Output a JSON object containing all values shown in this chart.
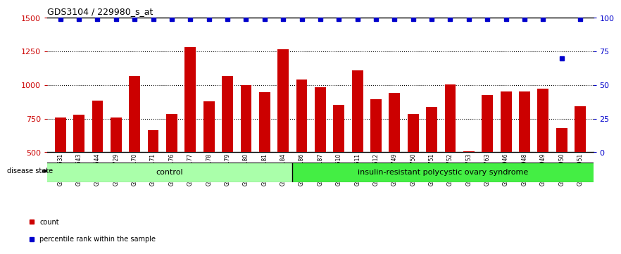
{
  "title": "GDS3104 / 229980_s_at",
  "samples": [
    "GSM155631",
    "GSM155643",
    "GSM155644",
    "GSM155729",
    "GSM156170",
    "GSM156171",
    "GSM156176",
    "GSM156177",
    "GSM156178",
    "GSM156179",
    "GSM156180",
    "GSM156181",
    "GSM156184",
    "GSM156186",
    "GSM156187",
    "GSM156510",
    "GSM156511",
    "GSM156512",
    "GSM156749",
    "GSM156750",
    "GSM156751",
    "GSM156752",
    "GSM156753",
    "GSM156763",
    "GSM156946",
    "GSM156948",
    "GSM156949",
    "GSM156950",
    "GSM156951"
  ],
  "counts": [
    757,
    779,
    886,
    757,
    1065,
    665,
    784,
    1281,
    879,
    1065,
    1001,
    949,
    1265,
    1042,
    984,
    853,
    1107,
    896,
    944,
    785,
    836,
    1005,
    510,
    924,
    951,
    950,
    975,
    678,
    844
  ],
  "percentile_ranks": [
    99,
    99,
    99,
    99,
    99,
    99,
    99,
    99,
    99,
    99,
    99,
    99,
    99,
    99,
    99,
    99,
    99,
    99,
    99,
    99,
    99,
    99,
    99,
    99,
    99,
    99,
    99,
    70,
    99
  ],
  "ctrl_count": 13,
  "group_labels": [
    "control",
    "insulin-resistant polycystic ovary syndrome"
  ],
  "ctrl_color": "#AAFFAA",
  "pcos_color": "#44EE44",
  "bar_color": "#CC0000",
  "dot_color": "#0000CC",
  "ylim_left": [
    500,
    1500
  ],
  "ylim_right": [
    0,
    100
  ],
  "yticks_left": [
    500,
    750,
    1000,
    1250,
    1500
  ],
  "yticks_right": [
    0,
    25,
    50,
    75,
    100
  ],
  "grid_values": [
    750,
    1000,
    1250
  ],
  "legend_items": [
    "count",
    "percentile rank within the sample"
  ],
  "disease_state_label": "disease state"
}
